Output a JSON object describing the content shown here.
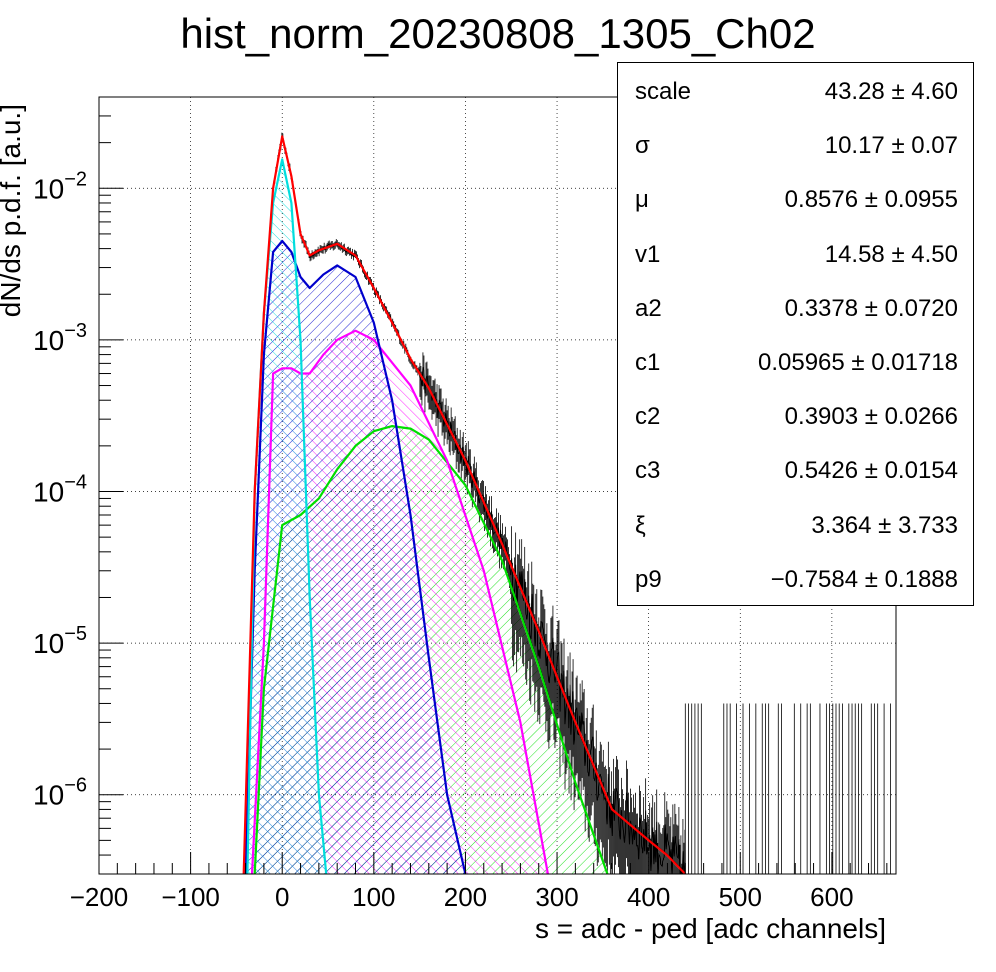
{
  "chart_data": {
    "type": "line",
    "title": "hist_norm_20230808_1305_Ch02",
    "xlabel": "s = adc - ped [adc channels]",
    "ylabel": "dN/ds p.d.f. [a.u.]",
    "xlim": [
      -200,
      670
    ],
    "ylim": [
      3e-07,
      0.04
    ],
    "y_scale": "log",
    "grid": true,
    "x_ticks": [
      "−200",
      "−100",
      "0",
      "100",
      "200",
      "300",
      "400",
      "500",
      "600"
    ],
    "x_tick_values": [
      -200,
      -100,
      0,
      100,
      200,
      300,
      400,
      500,
      600
    ],
    "y_ticks": [
      {
        "base": "10",
        "exp": "−2",
        "value": 0.01
      },
      {
        "base": "10",
        "exp": "−3",
        "value": 0.001
      },
      {
        "base": "10",
        "exp": "−4",
        "value": 0.0001
      },
      {
        "base": "10",
        "exp": "−5",
        "value": 1e-05
      },
      {
        "base": "10",
        "exp": "−6",
        "value": 1e-06
      }
    ],
    "series": [
      {
        "color": "#ff0000",
        "fill": null,
        "x": [
          -42,
          -30,
          -20,
          -10,
          0,
          10,
          20,
          30,
          40,
          60,
          80,
          100,
          120,
          140,
          160,
          200,
          240,
          280,
          320,
          360,
          400,
          420,
          440
        ],
        "y": [
          3e-07,
          0.0001,
          0.0015,
          0.01,
          0.022,
          0.012,
          0.005,
          0.0036,
          0.0039,
          0.0043,
          0.0036,
          0.0022,
          0.0013,
          0.00075,
          0.00048,
          0.00016,
          4.5e-05,
          1.2e-05,
          3e-06,
          8e-07,
          5e-07,
          4e-07,
          3e-07
        ]
      },
      {
        "color": "#00dddd",
        "fill": "#00dddd",
        "x": [
          -38,
          -30,
          -20,
          -10,
          0,
          10,
          20,
          30,
          40,
          48
        ],
        "y": [
          3e-07,
          0.0001,
          0.0015,
          0.008,
          0.0155,
          0.008,
          0.001,
          2e-05,
          1e-06,
          3e-07
        ]
      },
      {
        "color": "#0000cc",
        "fill": "#0000cc",
        "x": [
          -40,
          -30,
          -20,
          -10,
          0,
          10,
          20,
          30,
          45,
          60,
          80,
          100,
          120,
          140,
          160,
          180,
          200
        ],
        "y": [
          3e-07,
          3e-05,
          0.0008,
          0.0038,
          0.0045,
          0.0038,
          0.0026,
          0.0022,
          0.0027,
          0.0031,
          0.0026,
          0.0013,
          0.0004,
          7e-05,
          8e-06,
          1e-06,
          3e-07
        ]
      },
      {
        "color": "#ff00ff",
        "fill": "#ff00ff",
        "x": [
          -33,
          -20,
          -10,
          0,
          10,
          20,
          30,
          45,
          60,
          80,
          100,
          140,
          180,
          220,
          260,
          290
        ],
        "y": [
          3e-07,
          1e-05,
          0.0006,
          0.00065,
          0.00065,
          0.0006,
          0.0006,
          0.0008,
          0.001,
          0.00115,
          0.001,
          0.0005,
          0.00016,
          3e-05,
          3e-06,
          3e-07
        ]
      },
      {
        "color": "#00dd00",
        "fill": "#00dd00",
        "x": [
          -30,
          -20,
          0,
          20,
          40,
          60,
          80,
          100,
          120,
          140,
          160,
          200,
          240,
          280,
          320,
          355
        ],
        "y": [
          3e-07,
          5e-06,
          6e-05,
          7e-05,
          9e-05,
          0.00014,
          0.0002,
          0.00025,
          0.00027,
          0.00026,
          0.00022,
          0.00011,
          3.5e-05,
          7e-06,
          1.2e-06,
          3e-07
        ]
      }
    ]
  },
  "stats": [
    {
      "name": "scale",
      "value": "43.28 ± 4.60"
    },
    {
      "name": "σ",
      "value": "10.17 ± 0.07"
    },
    {
      "name": "μ",
      "value": "0.8576 ± 0.0955"
    },
    {
      "name": "v1",
      "value": "14.58 ± 4.50"
    },
    {
      "name": "a2",
      "value": "0.3378 ± 0.0720"
    },
    {
      "name": "c1",
      "value": "0.05965 ± 0.01718"
    },
    {
      "name": "c2",
      "value": "0.3903 ± 0.0266"
    },
    {
      "name": "c3",
      "value": "0.5426 ± 0.0154"
    },
    {
      "name": "ξ",
      "value": "3.364 ± 3.733"
    },
    {
      "name": "p9",
      "value": "−0.7584 ± 0.1888"
    }
  ]
}
